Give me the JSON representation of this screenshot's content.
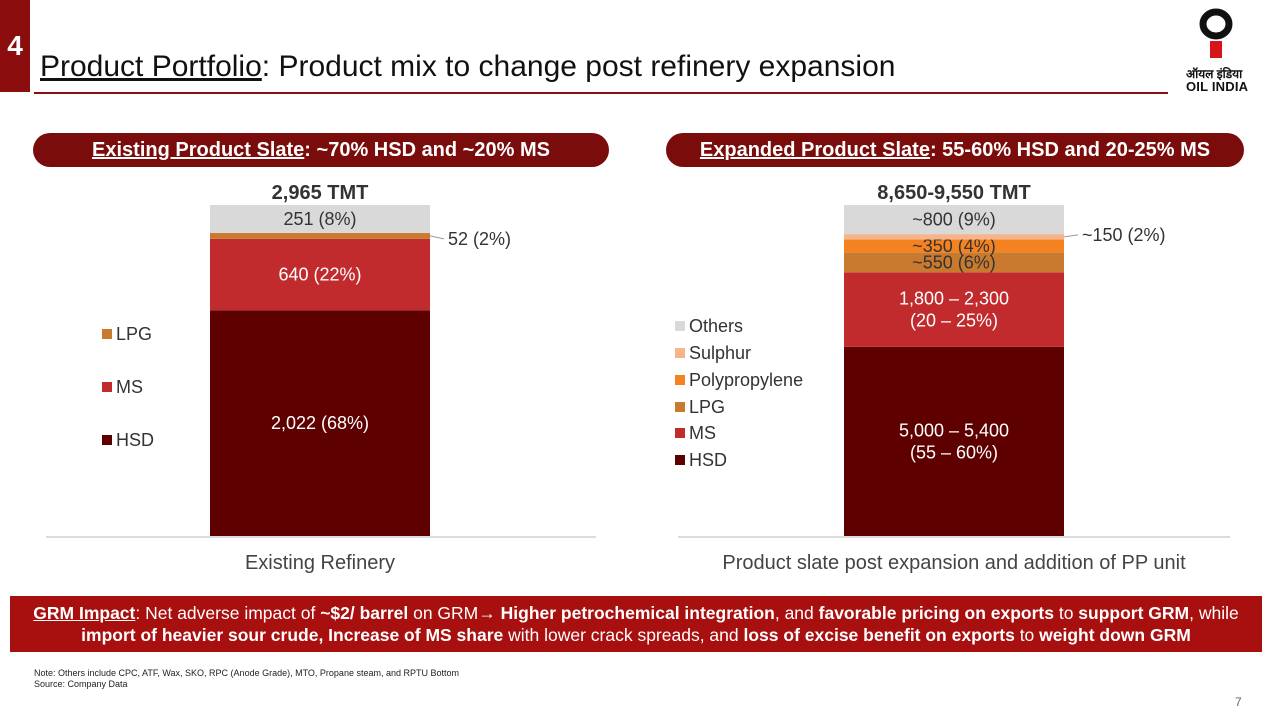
{
  "slide": {
    "section_number": "4",
    "title_underlined": "Product Portfolio",
    "title_rest": ": Product mix to change post refinery expansion",
    "logo_hindi": "ऑयल इंडिया",
    "logo_english": "OIL INDIA",
    "page_number": "7"
  },
  "colors": {
    "brand": "#8b0d0d",
    "HSD": "#5e0000",
    "MS": "#c22b2e",
    "LPG": "#c97a2e",
    "Polypropylene": "#f58220",
    "Sulphur": "#f6b48a",
    "Others": "#d9d9d9"
  },
  "chart_data": [
    {
      "type": "bar",
      "stacked": true,
      "header": {
        "underlined": "Existing Product Slate",
        "rest": ": ~70% HSD and ~20% MS"
      },
      "category": "Existing Refinery",
      "total_label": "2,965 TMT",
      "legend": [
        "LPG",
        "MS",
        "HSD"
      ],
      "series": [
        {
          "name": "HSD",
          "value": 2022,
          "label": "2,022 (68%)"
        },
        {
          "name": "MS",
          "value": 640,
          "label": "640 (22%)"
        },
        {
          "name": "LPG",
          "value": 52,
          "label": "52 (2%)",
          "callout": true
        },
        {
          "name": "Others",
          "value": 251,
          "label": "251 (8%)"
        }
      ]
    },
    {
      "type": "bar",
      "stacked": true,
      "header": {
        "underlined": "Expanded Product Slate",
        "rest": ": 55-60% HSD and 20-25% MS"
      },
      "category": "Product slate post expansion and addition of PP unit",
      "total_label": "8,650-9,550 TMT",
      "legend": [
        "Others",
        "Sulphur",
        "Polypropylene",
        "LPG",
        "MS",
        "HSD"
      ],
      "series": [
        {
          "name": "HSD",
          "value": 5200,
          "label_lines": [
            "5,000 – 5,400",
            "(55 – 60%)"
          ]
        },
        {
          "name": "MS",
          "value": 2050,
          "label_lines": [
            "1,800 – 2,300",
            "(20 – 25%)"
          ]
        },
        {
          "name": "LPG",
          "value": 550,
          "label_lines": [
            "~550 (6%)"
          ]
        },
        {
          "name": "Polypropylene",
          "value": 350,
          "label_lines": [
            "~350 (4%)"
          ]
        },
        {
          "name": "Sulphur",
          "value": 150,
          "label": "~150 (2%)",
          "callout": true
        },
        {
          "name": "Others",
          "value": 800,
          "label_lines": [
            "~800 (9%)"
          ]
        }
      ]
    }
  ],
  "grm": {
    "label": "GRM Impact",
    "t1": ": Net adverse impact of ",
    "b1": "~$2/ barrel",
    "t2": " on GRM→ ",
    "b2": "Higher petrochemical integration",
    "t3": ", and ",
    "b3": "favorable pricing on exports",
    "t4": " to ",
    "b4": "support GRM",
    "t5": ", while ",
    "b5": "import of heavier sour crude, Increase of MS share",
    "t6": " with lower crack spreads, and ",
    "b6": "loss of excise benefit on exports",
    "t7": " to ",
    "b7": "weight down GRM"
  },
  "notes": {
    "note": "Note: Others include CPC, ATF, Wax, SKO, RPC (Anode Grade), MTO, Propane steam, and RPTU Bottom",
    "source": "Source: Company Data"
  }
}
